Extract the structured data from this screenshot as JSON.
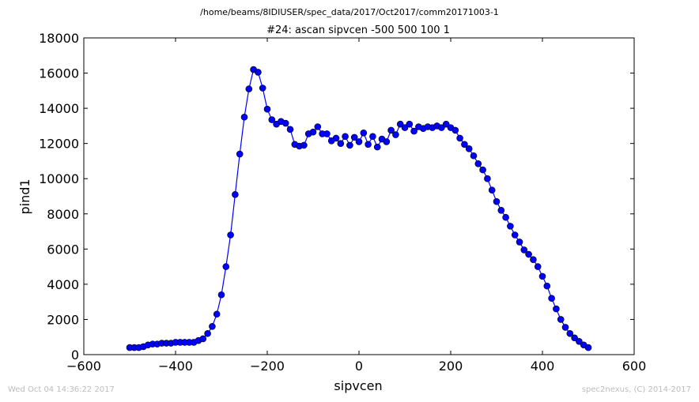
{
  "chart_data": {
    "type": "line",
    "suptitle": "/home/beams/8IDIUSER/spec_data/2017/Oct2017/comm20171003-1",
    "title": "#24: ascan  sipvcen -500 500  100 1",
    "xlabel": "sipvcen",
    "ylabel": "pind1",
    "xlim": [
      -600,
      600
    ],
    "ylim": [
      0,
      18000
    ],
    "xticks": [
      -600,
      -400,
      -200,
      0,
      200,
      400,
      600
    ],
    "yticks": [
      0,
      2000,
      4000,
      6000,
      8000,
      10000,
      12000,
      14000,
      16000,
      18000
    ],
    "grid": false,
    "legend": "none",
    "series": [
      {
        "color": "#0000ff",
        "marker": "circle",
        "x": [
          -500,
          -490,
          -480,
          -470,
          -460,
          -450,
          -440,
          -430,
          -420,
          -410,
          -400,
          -390,
          -380,
          -370,
          -360,
          -350,
          -340,
          -330,
          -320,
          -310,
          -300,
          -290,
          -280,
          -270,
          -260,
          -250,
          -240,
          -230,
          -220,
          -210,
          -200,
          -190,
          -180,
          -170,
          -160,
          -150,
          -140,
          -130,
          -120,
          -110,
          -100,
          -90,
          -80,
          -70,
          -60,
          -50,
          -40,
          -30,
          -20,
          -10,
          0,
          10,
          20,
          30,
          40,
          50,
          60,
          70,
          80,
          90,
          100,
          110,
          120,
          130,
          140,
          150,
          160,
          170,
          180,
          190,
          200,
          210,
          220,
          230,
          240,
          250,
          260,
          270,
          280,
          290,
          300,
          310,
          320,
          330,
          340,
          350,
          360,
          370,
          380,
          390,
          400,
          410,
          420,
          430,
          440,
          450,
          460,
          470,
          480,
          490,
          500
        ],
        "y": [
          400,
          400,
          400,
          450,
          550,
          600,
          600,
          650,
          650,
          650,
          700,
          700,
          700,
          700,
          700,
          800,
          900,
          1200,
          1600,
          2300,
          3400,
          5000,
          6800,
          9100,
          11400,
          13500,
          15100,
          16200,
          16050,
          15150,
          13950,
          13350,
          13100,
          13250,
          13150,
          12800,
          11950,
          11850,
          11900,
          12550,
          12650,
          12950,
          12550,
          12550,
          12150,
          12300,
          12000,
          12400,
          11900,
          12350,
          12100,
          12600,
          11950,
          12400,
          11800,
          12250,
          12100,
          12750,
          12500,
          13100,
          12900,
          13100,
          12700,
          12950,
          12850,
          12950,
          12900,
          13000,
          12900,
          13100,
          12900,
          12750,
          12300,
          11950,
          11700,
          11300,
          10850,
          10500,
          10000,
          9350,
          8700,
          8200,
          7800,
          7300,
          6800,
          6400,
          5950,
          5700,
          5400,
          5000,
          4450,
          3900,
          3200,
          2600,
          2000,
          1550,
          1200,
          950,
          750,
          550,
          400
        ]
      }
    ]
  },
  "footer": {
    "left": "Wed Oct 04 14:36:22 2017",
    "right": "spec2nexus, (C) 2014-2017"
  }
}
